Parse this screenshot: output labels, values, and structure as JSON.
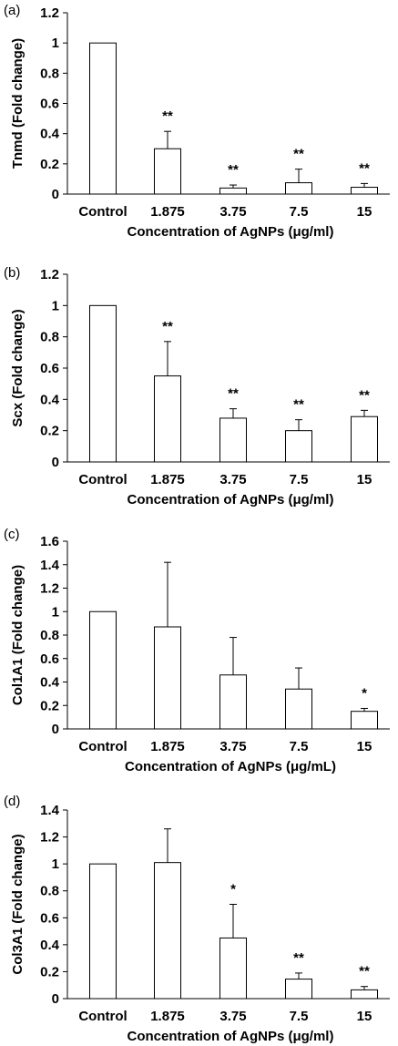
{
  "chart_data": [
    {
      "type": "bar",
      "panel_label": "(a)",
      "categories": [
        "Control",
        "1.875",
        "3.75",
        "7.5",
        "15"
      ],
      "values": [
        1.0,
        0.3,
        0.04,
        0.075,
        0.045
      ],
      "errors": [
        0.0,
        0.115,
        0.02,
        0.09,
        0.025
      ],
      "significance": [
        "",
        "**",
        "**",
        "**",
        "**"
      ],
      "ylabel": "Tnmd (Fold change)",
      "xlabel": "Concentration of AgNPs (μg/ml)",
      "ylim": [
        0,
        1.2
      ],
      "yticks": [
        "0",
        "0.2",
        "0.4",
        "0.6",
        "0.8",
        "1",
        "1.2"
      ],
      "grid": false
    },
    {
      "type": "bar",
      "panel_label": "(b)",
      "categories": [
        "Control",
        "1.875",
        "3.75",
        "7.5",
        "15"
      ],
      "values": [
        1.0,
        0.55,
        0.28,
        0.2,
        0.29
      ],
      "errors": [
        0.0,
        0.22,
        0.06,
        0.07,
        0.04
      ],
      "significance": [
        "",
        "**",
        "**",
        "**",
        "**"
      ],
      "ylabel": "Scx (Fold change)",
      "xlabel": "Concentration of AgNPs (μg/ml)",
      "ylim": [
        0,
        1.2
      ],
      "yticks": [
        "0",
        "0.2",
        "0.4",
        "0.6",
        "0.8",
        "1",
        "1.2"
      ],
      "grid": false
    },
    {
      "type": "bar",
      "panel_label": "(c)",
      "categories": [
        "Control",
        "1.875",
        "3.75",
        "7.5",
        "15"
      ],
      "values": [
        1.0,
        0.87,
        0.46,
        0.34,
        0.15
      ],
      "errors": [
        0.0,
        0.55,
        0.32,
        0.18,
        0.025
      ],
      "significance": [
        "",
        "",
        "",
        "",
        "*"
      ],
      "ylabel": "Col1A1 (Fold change)",
      "xlabel": "Concentration of AgNPs (μg/mL)",
      "ylim": [
        0,
        1.6
      ],
      "yticks": [
        "0",
        "0.2",
        "0.4",
        "0.6",
        "0.8",
        "1",
        "1.2",
        "1.4",
        "1.6"
      ],
      "grid": false
    },
    {
      "type": "bar",
      "panel_label": "(d)",
      "categories": [
        "Control",
        "1.875",
        "3.75",
        "7.5",
        "15"
      ],
      "values": [
        1.0,
        1.01,
        0.45,
        0.145,
        0.065
      ],
      "errors": [
        0.0,
        0.25,
        0.25,
        0.045,
        0.025
      ],
      "significance": [
        "",
        "",
        "*",
        "**",
        "**"
      ],
      "ylabel": "Col3A1 (Fold change)",
      "xlabel": "Concentration of AgNPs (μg/ml)",
      "ylim": [
        0,
        1.4
      ],
      "yticks": [
        "0",
        "0.2",
        "0.4",
        "0.6",
        "0.8",
        "1",
        "1.2",
        "1.4"
      ],
      "grid": false
    }
  ]
}
